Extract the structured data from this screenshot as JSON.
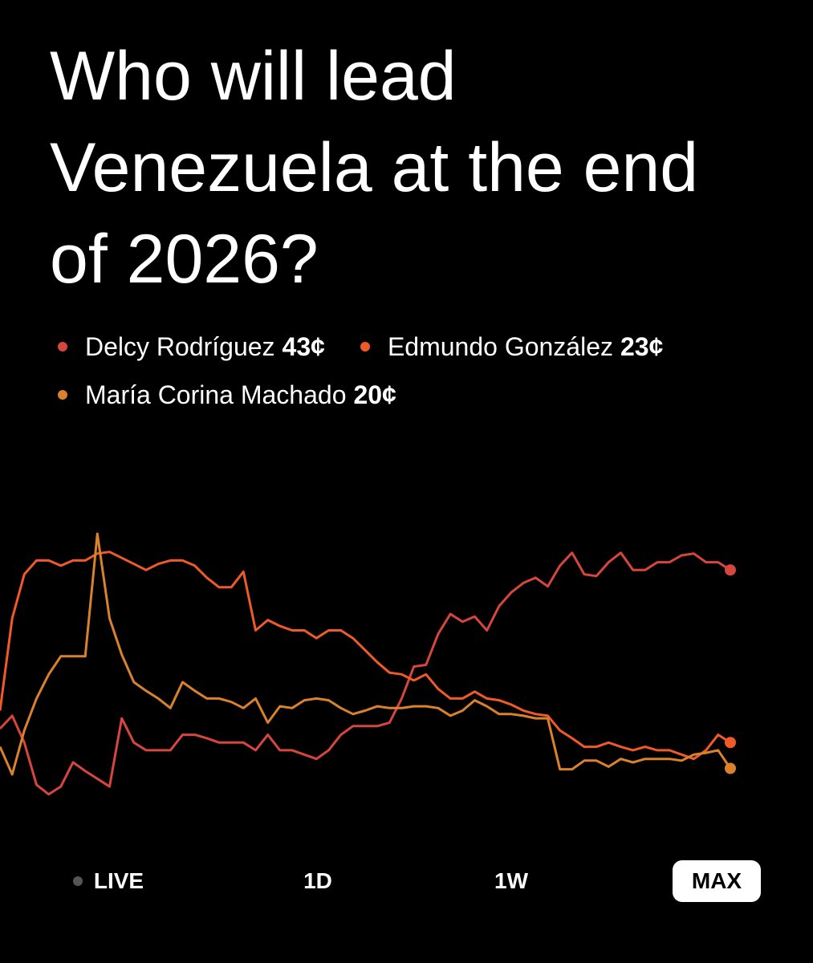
{
  "chart_data": {
    "type": "line",
    "title": "Who will lead Venezuela at the end of 2026?",
    "ylim": [
      10,
      50
    ],
    "series": [
      {
        "name": "Delcy Rodríguez",
        "value_label": "43¢",
        "color": "#d6463f",
        "values": [
          24.6,
          26.1,
          23,
          18.1,
          17,
          17.9,
          20.7,
          19.7,
          18.8,
          17.9,
          25.8,
          23,
          22.1,
          22.1,
          22.1,
          23.9,
          23.9,
          23.5,
          23,
          23,
          23,
          22.1,
          23.9,
          22.1,
          22.1,
          21.6,
          21.1,
          22.1,
          23.9,
          24.9,
          24.9,
          24.9,
          25.3,
          28.1,
          31.8,
          32,
          35.6,
          37.9,
          37,
          37.6,
          36,
          38.8,
          40.4,
          41.5,
          42.1,
          41.1,
          43.5,
          45,
          42.5,
          42.3,
          43.9,
          45,
          43,
          43,
          43.9,
          43.9,
          44.7,
          44.9,
          43.9,
          43.9,
          43
        ]
      },
      {
        "name": "Edmundo González",
        "value_label": "23¢",
        "color": "#f05a28",
        "values": [
          26.7,
          37.4,
          42.5,
          44.1,
          44.1,
          43.5,
          44.1,
          44.1,
          44.9,
          45.1,
          44.4,
          43.7,
          43,
          43.7,
          44.1,
          44.1,
          43.5,
          42.1,
          41,
          41,
          42.8,
          36,
          37.2,
          36.5,
          36,
          36,
          35.1,
          36,
          36,
          35.1,
          33.7,
          32.3,
          31.1,
          30.9,
          30.2,
          30.9,
          29.2,
          28.1,
          28.1,
          28.9,
          28.1,
          27.9,
          27.4,
          26.7,
          26.3,
          26.1,
          24.4,
          23.5,
          22.5,
          22.5,
          23,
          22.5,
          22.1,
          22.5,
          22.1,
          22.1,
          21.6,
          21.1,
          22.1,
          23.9,
          23
        ]
      },
      {
        "name": "María Corina Machado",
        "value_label": "20¢",
        "color": "#d9822b",
        "values": [
          22.5,
          19.3,
          24.4,
          28.1,
          30.9,
          33,
          33,
          33,
          47.2,
          37.4,
          33.2,
          30,
          29,
          28.1,
          27,
          30,
          29,
          28.1,
          28.1,
          27.7,
          27,
          28.1,
          25.3,
          27.2,
          27,
          27.9,
          28.1,
          27.9,
          27,
          26.3,
          26.7,
          27.2,
          27,
          27,
          27.2,
          27.2,
          27,
          26.1,
          26.7,
          27.9,
          27.2,
          26.3,
          26.3,
          26.1,
          25.8,
          25.8,
          19.9,
          19.9,
          20.9,
          20.9,
          20.2,
          21.1,
          20.7,
          21.1,
          21.1,
          21.1,
          20.9,
          21.6,
          21.8,
          22.1,
          20
        ]
      }
    ],
    "ranges": [
      "LIVE",
      "1D",
      "1W",
      "MAX"
    ],
    "selected": "MAX"
  }
}
